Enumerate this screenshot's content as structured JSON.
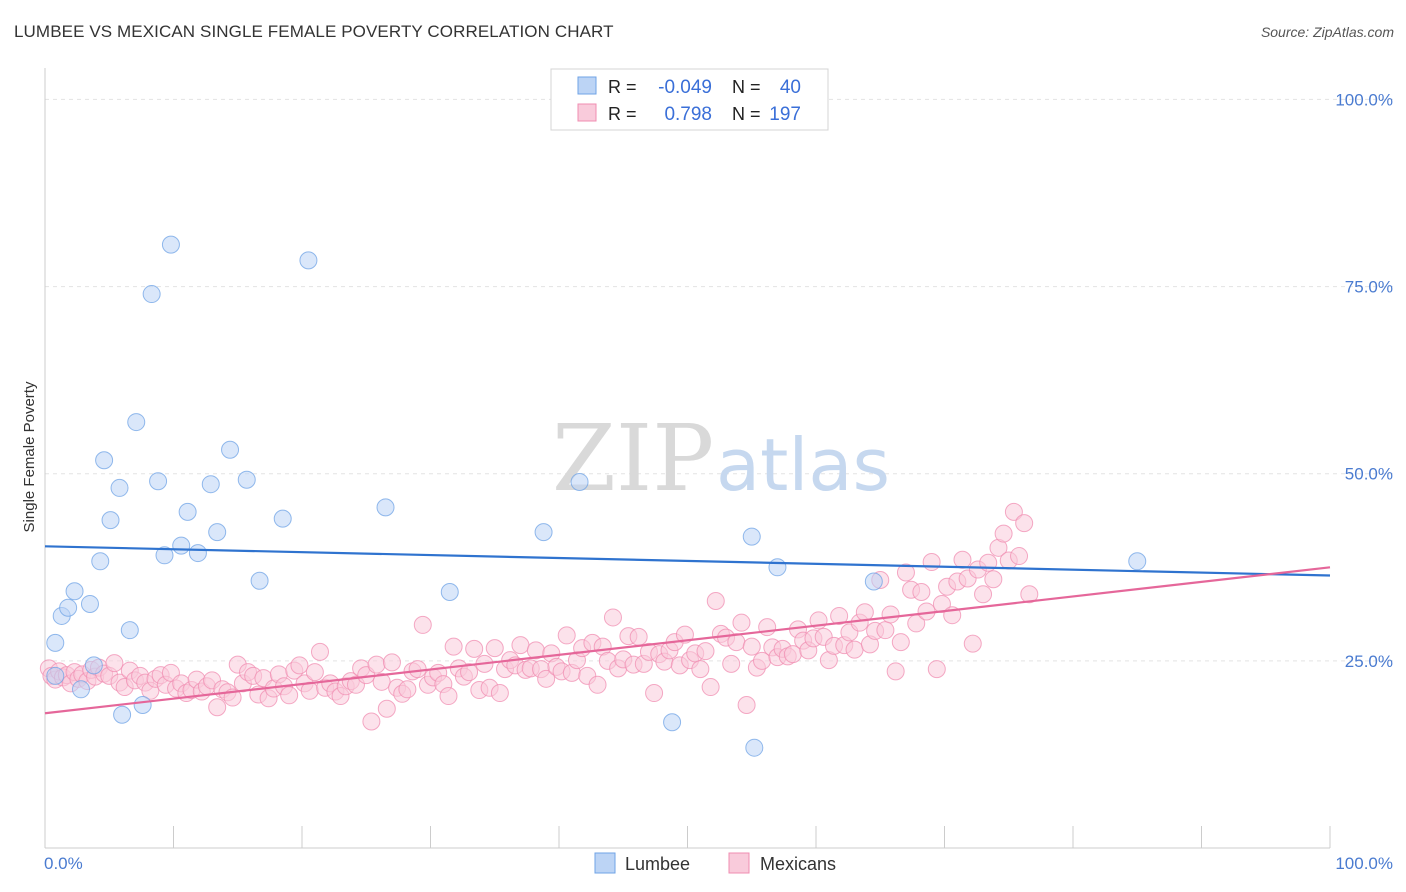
{
  "header": {
    "title": "LUMBEE VS MEXICAN SINGLE FEMALE POVERTY CORRELATION CHART",
    "source": "Source: ZipAtlas.com"
  },
  "watermark": {
    "zip": "ZIP",
    "atlas": "atlas"
  },
  "legend": {
    "rows": [
      {
        "r_label": "R =",
        "r_value": "-0.049",
        "n_label": "N =",
        "n_value": "40",
        "color": "#6fa3e6"
      },
      {
        "r_label": "R =",
        "r_value": "0.798",
        "n_label": "N =",
        "n_value": "197",
        "color": "#f08db1"
      }
    ]
  },
  "bottom_legend": [
    {
      "label": "Lumbee",
      "color": "#6fa3e6"
    },
    {
      "label": "Mexicans",
      "color": "#f08db1"
    }
  ],
  "chart_data": {
    "type": "scatter",
    "title": "LUMBEE VS MEXICAN SINGLE FEMALE POVERTY CORRELATION CHART",
    "xlabel": "",
    "ylabel": "Single Female Poverty",
    "xlim": [
      0,
      100
    ],
    "ylim": [
      0,
      105
    ],
    "x_tick_labels": [
      "0.0%",
      "100.0%"
    ],
    "y_tick_labels": [
      "25.0%",
      "50.0%",
      "75.0%",
      "100.0%"
    ],
    "y_ticks": [
      25,
      50,
      75,
      100
    ],
    "grid": true,
    "legend_position": "top-center",
    "series": [
      {
        "name": "Lumbee",
        "color": "#6fa3e6",
        "trend": {
          "x": [
            0,
            100
          ],
          "y": [
            40.3,
            36.4
          ]
        },
        "points": [
          [
            0.8,
            27.4
          ],
          [
            0.8,
            23.0
          ],
          [
            1.3,
            31.0
          ],
          [
            1.8,
            32.1
          ],
          [
            2.3,
            34.3
          ],
          [
            2.8,
            21.2
          ],
          [
            3.5,
            32.6
          ],
          [
            3.8,
            24.4
          ],
          [
            4.3,
            38.3
          ],
          [
            4.6,
            51.8
          ],
          [
            5.1,
            43.8
          ],
          [
            5.8,
            48.1
          ],
          [
            6.6,
            29.1
          ],
          [
            7.1,
            56.9
          ],
          [
            7.6,
            19.1
          ],
          [
            8.3,
            74.0
          ],
          [
            8.8,
            49.0
          ],
          [
            9.3,
            39.1
          ],
          [
            9.8,
            80.6
          ],
          [
            10.6,
            40.4
          ],
          [
            11.1,
            44.9
          ],
          [
            11.9,
            39.4
          ],
          [
            12.9,
            48.6
          ],
          [
            13.4,
            42.2
          ],
          [
            14.4,
            53.2
          ],
          [
            15.7,
            49.2
          ],
          [
            16.7,
            35.7
          ],
          [
            18.5,
            44.0
          ],
          [
            20.5,
            78.5
          ],
          [
            26.5,
            45.5
          ],
          [
            31.5,
            34.2
          ],
          [
            38.8,
            42.2
          ],
          [
            41.6,
            48.9
          ],
          [
            48.8,
            16.8
          ],
          [
            55.0,
            41.6
          ],
          [
            55.2,
            13.4
          ],
          [
            57.0,
            37.5
          ],
          [
            64.5,
            35.6
          ],
          [
            85.0,
            38.3
          ],
          [
            6.0,
            17.8
          ]
        ]
      },
      {
        "name": "Mexicans",
        "color": "#f08db1",
        "trend": {
          "x": [
            0,
            100
          ],
          "y": [
            18.0,
            37.5
          ]
        },
        "points": [
          [
            0.3,
            24.0
          ],
          [
            0.5,
            23.0
          ],
          [
            0.8,
            22.5
          ],
          [
            1.1,
            23.6
          ],
          [
            1.4,
            22.8
          ],
          [
            1.7,
            23.1
          ],
          [
            2.0,
            22.0
          ],
          [
            2.3,
            23.5
          ],
          [
            2.6,
            22.6
          ],
          [
            2.9,
            23.2
          ],
          [
            3.3,
            22.3
          ],
          [
            3.6,
            23.8
          ],
          [
            3.9,
            22.9
          ],
          [
            4.2,
            24.1
          ],
          [
            4.6,
            23.3
          ],
          [
            5.0,
            23.0
          ],
          [
            5.4,
            24.7
          ],
          [
            5.8,
            22.1
          ],
          [
            6.2,
            21.5
          ],
          [
            6.6,
            23.7
          ],
          [
            7.0,
            22.4
          ],
          [
            7.4,
            23.0
          ],
          [
            7.8,
            22.1
          ],
          [
            8.2,
            21.0
          ],
          [
            8.6,
            22.6
          ],
          [
            9.0,
            23.1
          ],
          [
            9.4,
            21.8
          ],
          [
            9.8,
            23.4
          ],
          [
            10.2,
            21.3
          ],
          [
            10.6,
            22.0
          ],
          [
            11.0,
            20.7
          ],
          [
            11.4,
            21.1
          ],
          [
            11.8,
            22.5
          ],
          [
            12.2,
            20.9
          ],
          [
            12.6,
            21.6
          ],
          [
            13.0,
            22.4
          ],
          [
            13.4,
            18.8
          ],
          [
            13.8,
            21.2
          ],
          [
            14.2,
            20.8
          ],
          [
            14.6,
            20.1
          ],
          [
            15.0,
            24.5
          ],
          [
            15.4,
            22.0
          ],
          [
            15.8,
            23.5
          ],
          [
            16.2,
            23.0
          ],
          [
            16.6,
            20.5
          ],
          [
            17.0,
            22.7
          ],
          [
            17.4,
            20.0
          ],
          [
            17.8,
            21.3
          ],
          [
            18.2,
            23.2
          ],
          [
            18.6,
            21.6
          ],
          [
            19.0,
            20.4
          ],
          [
            19.4,
            23.7
          ],
          [
            19.8,
            24.4
          ],
          [
            20.2,
            22.0
          ],
          [
            20.6,
            21.0
          ],
          [
            21.0,
            23.5
          ],
          [
            21.4,
            26.2
          ],
          [
            21.8,
            21.4
          ],
          [
            22.2,
            22.0
          ],
          [
            22.6,
            20.9
          ],
          [
            23.0,
            20.3
          ],
          [
            23.4,
            21.6
          ],
          [
            23.8,
            22.3
          ],
          [
            24.2,
            21.8
          ],
          [
            24.6,
            24.0
          ],
          [
            25.0,
            23.1
          ],
          [
            25.4,
            16.9
          ],
          [
            25.8,
            24.5
          ],
          [
            26.2,
            22.2
          ],
          [
            26.6,
            18.6
          ],
          [
            27.0,
            24.8
          ],
          [
            27.4,
            21.4
          ],
          [
            27.8,
            20.6
          ],
          [
            28.2,
            21.2
          ],
          [
            28.6,
            23.6
          ],
          [
            29.0,
            23.9
          ],
          [
            29.4,
            29.8
          ],
          [
            29.8,
            21.8
          ],
          [
            30.2,
            22.8
          ],
          [
            30.6,
            23.4
          ],
          [
            31.0,
            21.9
          ],
          [
            31.4,
            20.3
          ],
          [
            31.8,
            26.9
          ],
          [
            32.2,
            24.0
          ],
          [
            32.6,
            22.9
          ],
          [
            33.0,
            23.5
          ],
          [
            33.4,
            26.6
          ],
          [
            33.8,
            21.1
          ],
          [
            34.2,
            24.6
          ],
          [
            34.6,
            21.4
          ],
          [
            35.0,
            26.7
          ],
          [
            35.4,
            20.7
          ],
          [
            35.8,
            23.9
          ],
          [
            36.2,
            25.1
          ],
          [
            36.6,
            24.4
          ],
          [
            37.0,
            27.1
          ],
          [
            37.4,
            23.8
          ],
          [
            37.8,
            24.0
          ],
          [
            38.2,
            26.4
          ],
          [
            38.6,
            23.9
          ],
          [
            39.0,
            22.6
          ],
          [
            39.4,
            26.0
          ],
          [
            39.8,
            24.2
          ],
          [
            40.2,
            23.6
          ],
          [
            40.6,
            28.4
          ],
          [
            41.0,
            23.4
          ],
          [
            41.4,
            25.1
          ],
          [
            41.8,
            26.7
          ],
          [
            42.2,
            23.0
          ],
          [
            42.6,
            27.4
          ],
          [
            43.0,
            21.8
          ],
          [
            43.4,
            26.9
          ],
          [
            43.8,
            25.0
          ],
          [
            44.2,
            30.8
          ],
          [
            44.6,
            24.0
          ],
          [
            45.0,
            25.2
          ],
          [
            45.4,
            28.3
          ],
          [
            45.8,
            24.5
          ],
          [
            46.2,
            28.2
          ],
          [
            46.6,
            24.6
          ],
          [
            47.0,
            26.2
          ],
          [
            47.4,
            20.7
          ],
          [
            47.8,
            25.9
          ],
          [
            48.2,
            24.9
          ],
          [
            48.6,
            26.4
          ],
          [
            49.0,
            27.5
          ],
          [
            49.4,
            24.4
          ],
          [
            49.8,
            28.5
          ],
          [
            50.2,
            25.1
          ],
          [
            50.6,
            26.0
          ],
          [
            51.0,
            23.9
          ],
          [
            51.4,
            26.3
          ],
          [
            51.8,
            21.5
          ],
          [
            52.2,
            33.0
          ],
          [
            52.6,
            28.6
          ],
          [
            53.0,
            28.1
          ],
          [
            53.4,
            24.6
          ],
          [
            53.8,
            27.5
          ],
          [
            54.2,
            30.1
          ],
          [
            54.6,
            19.1
          ],
          [
            55.0,
            26.9
          ],
          [
            55.4,
            24.1
          ],
          [
            55.8,
            25.0
          ],
          [
            56.2,
            29.5
          ],
          [
            56.6,
            26.8
          ],
          [
            57.0,
            25.5
          ],
          [
            57.4,
            26.6
          ],
          [
            57.8,
            25.6
          ],
          [
            58.2,
            25.9
          ],
          [
            58.6,
            29.2
          ],
          [
            59.0,
            27.7
          ],
          [
            59.4,
            26.4
          ],
          [
            59.8,
            28.0
          ],
          [
            60.2,
            30.4
          ],
          [
            60.6,
            28.2
          ],
          [
            61.0,
            25.1
          ],
          [
            61.4,
            27.0
          ],
          [
            61.8,
            31.0
          ],
          [
            62.2,
            27.1
          ],
          [
            62.6,
            28.8
          ],
          [
            63.0,
            26.5
          ],
          [
            63.4,
            30.1
          ],
          [
            63.8,
            31.5
          ],
          [
            64.2,
            27.2
          ],
          [
            64.6,
            29.0
          ],
          [
            65.0,
            35.8
          ],
          [
            65.4,
            29.1
          ],
          [
            65.8,
            31.2
          ],
          [
            66.2,
            23.6
          ],
          [
            66.6,
            27.5
          ],
          [
            67.0,
            36.8
          ],
          [
            67.4,
            34.5
          ],
          [
            67.8,
            30.0
          ],
          [
            68.2,
            34.2
          ],
          [
            68.6,
            31.6
          ],
          [
            69.0,
            38.2
          ],
          [
            69.4,
            23.9
          ],
          [
            69.8,
            32.6
          ],
          [
            70.2,
            34.9
          ],
          [
            70.6,
            31.1
          ],
          [
            71.0,
            35.6
          ],
          [
            71.4,
            38.5
          ],
          [
            71.8,
            36.0
          ],
          [
            72.2,
            27.3
          ],
          [
            72.6,
            37.2
          ],
          [
            73.0,
            33.9
          ],
          [
            73.4,
            38.1
          ],
          [
            73.8,
            35.9
          ],
          [
            74.2,
            40.1
          ],
          [
            74.6,
            42.0
          ],
          [
            75.0,
            38.4
          ],
          [
            75.4,
            44.9
          ],
          [
            75.8,
            39.0
          ],
          [
            76.2,
            43.4
          ],
          [
            76.6,
            33.9
          ]
        ]
      }
    ]
  }
}
